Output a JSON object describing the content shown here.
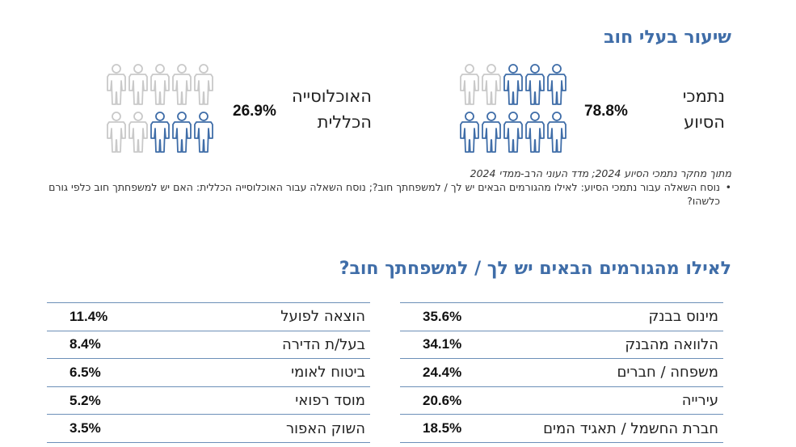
{
  "debt_section": {
    "title": "שיעור בעלי חוב",
    "groups": [
      {
        "label_line1": "נתמכי",
        "label_line2": "הסיוע",
        "value": "78.8%",
        "fraction": 0.788
      },
      {
        "label_line1": "האוכלוסייה",
        "label_line2": "הכללית",
        "value": "26.9%",
        "fraction": 0.269
      }
    ],
    "source": "מתוך מחקר נתמכי הסיוע 2024; מדד העוני הרב-ממדי 2024",
    "footnote": "נוסח השאלה עבור נתמכי הסיוע: לאילו מהגורמים הבאים יש לך / למשפחתך חוב?; נוסח השאלה עבור האוכלוסייה הכללית: האם יש למשפחתך חוב כלפי גורם כלשהו?",
    "colors": {
      "filled": "#3f6da8",
      "empty": "#c9c9c9"
    }
  },
  "factors_section": {
    "title": "לאילו מהגורמים הבאים יש לך / למשפחתך חוב?"
  },
  "chart_data": {
    "type": "table",
    "title": "לאילו מהגורמים הבאים יש לך / למשפחתך חוב?",
    "rows": [
      {
        "label": "מינוס בבנק",
        "value": "35.6%"
      },
      {
        "label": "הלוואה מהבנק",
        "value": "34.1%"
      },
      {
        "label": "משפחה / חברים",
        "value": "24.4%"
      },
      {
        "label": "עירייה",
        "value": "20.6%"
      },
      {
        "label": "חברת החשמל / תאגיד המים",
        "value": "18.5%"
      },
      {
        "label": "הוצאה לפועל",
        "value": "11.4%"
      },
      {
        "label": "בעל/ת הדירה",
        "value": "8.4%"
      },
      {
        "label": "ביטוח לאומי",
        "value": "6.5%"
      },
      {
        "label": "מוסד רפואי",
        "value": "5.2%"
      },
      {
        "label": "השוק האפור",
        "value": "3.5%"
      }
    ]
  }
}
